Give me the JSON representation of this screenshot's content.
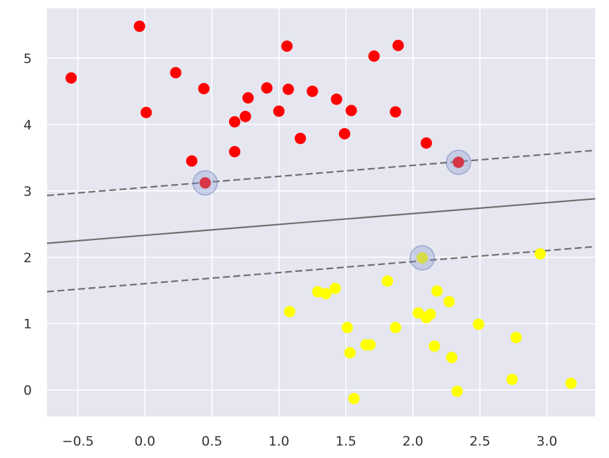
{
  "chart_data": {
    "type": "scatter",
    "title": "",
    "xlabel": "",
    "ylabel": "",
    "xlim": [
      -0.73,
      3.36
    ],
    "ylim": [
      -0.4,
      5.75
    ],
    "grid": true,
    "style": {
      "background": "#e5e6f0",
      "grid_color": "#ffffff"
    },
    "x_ticks": [
      {
        "value": -0.5,
        "label": "−0.5"
      },
      {
        "value": 0.0,
        "label": "0.0"
      },
      {
        "value": 0.5,
        "label": "0.5"
      },
      {
        "value": 1.0,
        "label": "1.0"
      },
      {
        "value": 1.5,
        "label": "1.5"
      },
      {
        "value": 2.0,
        "label": "2.0"
      },
      {
        "value": 2.5,
        "label": "2.5"
      },
      {
        "value": 3.0,
        "label": "3.0"
      }
    ],
    "y_ticks": [
      {
        "value": 0,
        "label": "0"
      },
      {
        "value": 1,
        "label": "1"
      },
      {
        "value": 2,
        "label": "2"
      },
      {
        "value": 3,
        "label": "3"
      },
      {
        "value": 4,
        "label": "4"
      },
      {
        "value": 5,
        "label": "5"
      }
    ],
    "series": [
      {
        "color": "#ff0000",
        "points": [
          [
            -0.55,
            4.7
          ],
          [
            -0.04,
            5.48
          ],
          [
            0.01,
            4.18
          ],
          [
            0.23,
            4.78
          ],
          [
            0.35,
            3.45
          ],
          [
            0.44,
            4.54
          ],
          [
            0.45,
            3.12
          ],
          [
            0.67,
            4.04
          ],
          [
            0.67,
            3.59
          ],
          [
            0.75,
            4.12
          ],
          [
            0.77,
            4.4
          ],
          [
            0.91,
            4.55
          ],
          [
            1.0,
            4.2
          ],
          [
            1.06,
            5.18
          ],
          [
            1.07,
            4.53
          ],
          [
            1.16,
            3.79
          ],
          [
            1.25,
            4.5
          ],
          [
            1.43,
            4.38
          ],
          [
            1.49,
            3.86
          ],
          [
            1.54,
            4.21
          ],
          [
            1.71,
            5.03
          ],
          [
            1.87,
            4.19
          ],
          [
            1.89,
            5.19
          ],
          [
            2.1,
            3.72
          ],
          [
            2.34,
            3.43
          ]
        ]
      },
      {
        "color": "#ffff00",
        "points": [
          [
            1.08,
            1.18
          ],
          [
            1.29,
            1.48
          ],
          [
            1.35,
            1.45
          ],
          [
            1.42,
            1.53
          ],
          [
            1.51,
            0.94
          ],
          [
            1.53,
            0.56
          ],
          [
            1.56,
            -0.13
          ],
          [
            1.65,
            0.68
          ],
          [
            1.68,
            0.68
          ],
          [
            1.81,
            1.64
          ],
          [
            1.87,
            0.94
          ],
          [
            2.04,
            1.16
          ],
          [
            2.07,
            1.99
          ],
          [
            2.1,
            1.09
          ],
          [
            2.13,
            1.14
          ],
          [
            2.16,
            0.66
          ],
          [
            2.18,
            1.49
          ],
          [
            2.27,
            1.33
          ],
          [
            2.29,
            0.49
          ],
          [
            2.33,
            -0.02
          ],
          [
            2.49,
            0.99
          ],
          [
            2.74,
            0.16
          ],
          [
            2.77,
            0.79
          ],
          [
            2.95,
            2.05
          ],
          [
            3.18,
            0.1
          ]
        ]
      }
    ],
    "support_vectors": [
      [
        0.45,
        3.12
      ],
      [
        2.34,
        3.43
      ],
      [
        2.07,
        1.99
      ]
    ],
    "support_vector_style": {
      "fill": "#8a9bcf",
      "fill_opacity": 0.35,
      "stroke": "#5f73b3"
    },
    "decision_lines": [
      {
        "role": "boundary",
        "style": "solid",
        "color": "#6e6e6e",
        "y_at_xmin": 2.21,
        "y_at_xmax": 2.88
      },
      {
        "role": "margin",
        "style": "dashed",
        "color": "#6e6e6e",
        "y_at_xmin": 2.93,
        "y_at_xmax": 3.61
      },
      {
        "role": "margin",
        "style": "dashed",
        "color": "#6e6e6e",
        "y_at_xmin": 1.48,
        "y_at_xmax": 2.16
      }
    ]
  }
}
